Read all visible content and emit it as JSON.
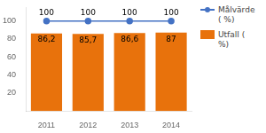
{
  "chart_data": {
    "type": "bar",
    "categories": [
      "2011",
      "2012",
      "2013",
      "2014"
    ],
    "series": [
      {
        "name": "Målvärde\n( %)",
        "type": "line",
        "color": "#4472C4",
        "marker": "circle",
        "values": [
          100,
          100,
          100,
          100
        ]
      },
      {
        "name": "Utfall (\n%)",
        "type": "bar",
        "color": "#E8720C",
        "values": [
          86.2,
          85.7,
          86.6,
          87
        ],
        "value_labels": [
          "86,2",
          "85,7",
          "86,6",
          "87"
        ]
      }
    ],
    "ylim": [
      0,
      115
    ],
    "yticks": [
      20,
      40,
      60,
      80,
      100
    ],
    "grid": false,
    "legend": "right",
    "data_labels": true
  }
}
